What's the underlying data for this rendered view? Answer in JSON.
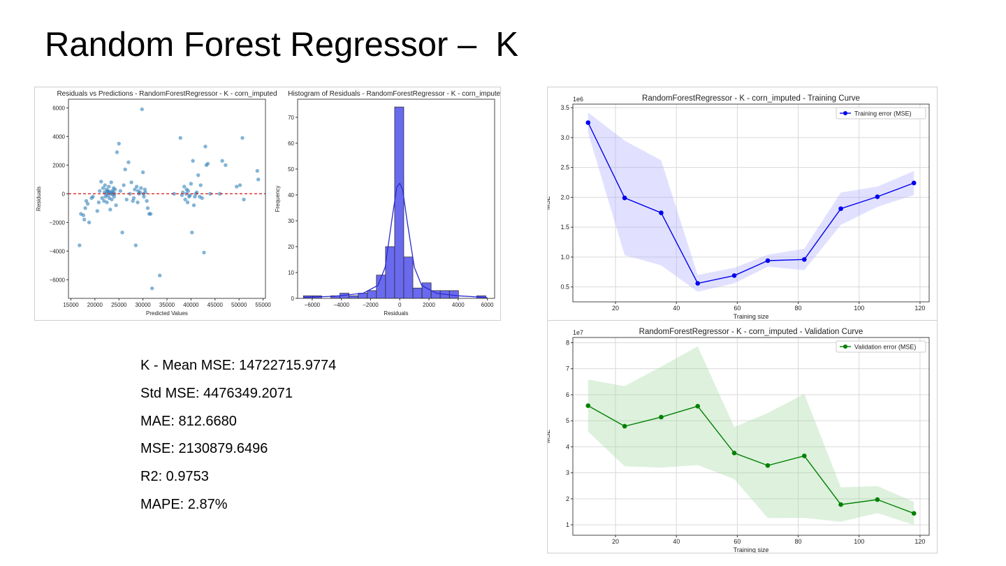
{
  "slide": {
    "title": "Random Forest Regressor –  K"
  },
  "metrics": {
    "mean_mse": "K - Mean MSE: 14722715.9774",
    "std_mse": "Std MSE: 4476349.2071",
    "mae": "MAE: 812.6680",
    "mse": "MSE: 2130879.6496",
    "r2": "R2: 0.9753",
    "mape": "MAPE: 2.87%"
  },
  "chart_data": [
    {
      "id": "scatter",
      "type": "scatter",
      "title": "Residuals vs Predictions - RandomForestRegressor - K - corn_imputed",
      "xlabel": "Predicted Values",
      "ylabel": "Residuals",
      "xlim": [
        14500,
        55500
      ],
      "ylim": [
        -7300,
        6600
      ],
      "xticks": [
        15000,
        20000,
        25000,
        30000,
        35000,
        40000,
        45000,
        50000,
        55000
      ],
      "yticks": [
        -6000,
        -4000,
        -2000,
        0,
        2000,
        4000,
        6000
      ],
      "reference_line": 0,
      "color": "#1f77b4",
      "ref_color": "#d62728",
      "points": [
        [
          16800,
          -3600
        ],
        [
          17100,
          -1400
        ],
        [
          17600,
          -1500
        ],
        [
          17800,
          -1800
        ],
        [
          18000,
          -1000
        ],
        [
          18200,
          -500
        ],
        [
          18500,
          -700
        ],
        [
          18800,
          -2000
        ],
        [
          19300,
          -300
        ],
        [
          19600,
          -200
        ],
        [
          20500,
          -1200
        ],
        [
          20800,
          -600
        ],
        [
          21000,
          200
        ],
        [
          21300,
          850
        ],
        [
          21500,
          -300
        ],
        [
          21700,
          400
        ],
        [
          21900,
          -500
        ],
        [
          22000,
          100
        ],
        [
          22100,
          600
        ],
        [
          22200,
          -200
        ],
        [
          22300,
          0
        ],
        [
          22400,
          300
        ],
        [
          22500,
          -600
        ],
        [
          22600,
          150
        ],
        [
          22700,
          -100
        ],
        [
          22800,
          200
        ],
        [
          22900,
          500
        ],
        [
          23000,
          -300
        ],
        [
          23100,
          100
        ],
        [
          23200,
          -1100
        ],
        [
          23300,
          0
        ],
        [
          23400,
          800
        ],
        [
          23500,
          -400
        ],
        [
          23600,
          200
        ],
        [
          23700,
          -50
        ],
        [
          23800,
          100
        ],
        [
          23900,
          400
        ],
        [
          24000,
          -200
        ],
        [
          24100,
          0
        ],
        [
          24200,
          300
        ],
        [
          24400,
          -800
        ],
        [
          24600,
          2900
        ],
        [
          25000,
          3500
        ],
        [
          25300,
          200
        ],
        [
          25700,
          -2700
        ],
        [
          26000,
          600
        ],
        [
          26300,
          1700
        ],
        [
          26600,
          -400
        ],
        [
          27000,
          2200
        ],
        [
          27300,
          0
        ],
        [
          27600,
          800
        ],
        [
          27900,
          -500
        ],
        [
          28100,
          -300
        ],
        [
          28300,
          300
        ],
        [
          28500,
          -3600
        ],
        [
          28700,
          500
        ],
        [
          28900,
          -600
        ],
        [
          29000,
          200
        ],
        [
          29200,
          0
        ],
        [
          29400,
          100
        ],
        [
          29600,
          400
        ],
        [
          29800,
          5900
        ],
        [
          30000,
          1500
        ],
        [
          30100,
          0
        ],
        [
          30200,
          -200
        ],
        [
          30400,
          300
        ],
        [
          30500,
          100
        ],
        [
          30800,
          -500
        ],
        [
          31000,
          -1000
        ],
        [
          31300,
          -1400
        ],
        [
          31600,
          -1400
        ],
        [
          31900,
          -6600
        ],
        [
          33500,
          -5700
        ],
        [
          37800,
          3900
        ],
        [
          38100,
          -100
        ],
        [
          38300,
          100
        ],
        [
          38600,
          500
        ],
        [
          38800,
          -400
        ],
        [
          39000,
          0
        ],
        [
          39100,
          300
        ],
        [
          39300,
          -600
        ],
        [
          39400,
          200
        ],
        [
          39600,
          -200
        ],
        [
          39800,
          -100
        ],
        [
          40000,
          700
        ],
        [
          40200,
          -2700
        ],
        [
          40400,
          2300
        ],
        [
          40600,
          -800
        ],
        [
          40800,
          -200
        ],
        [
          41000,
          0
        ],
        [
          41200,
          100
        ],
        [
          41500,
          1300
        ],
        [
          41800,
          -200
        ],
        [
          42000,
          600
        ],
        [
          42300,
          -300
        ],
        [
          42700,
          -4100
        ],
        [
          43000,
          3300
        ],
        [
          43200,
          2000
        ],
        [
          43500,
          2100
        ],
        [
          46500,
          2300
        ],
        [
          47200,
          2000
        ],
        [
          49500,
          500
        ],
        [
          50200,
          600
        ],
        [
          50700,
          3900
        ],
        [
          51000,
          -400
        ],
        [
          53800,
          1600
        ],
        [
          54000,
          1000
        ],
        [
          46000,
          0
        ],
        [
          44000,
          0
        ],
        [
          36500,
          0
        ]
      ]
    },
    {
      "id": "histogram",
      "type": "bar",
      "title": "Histogram of Residuals - RandomForestRegressor - K - corn_imputed",
      "xlabel": "Residuals",
      "ylabel": "Frequency",
      "xlim": [
        -7000,
        6500
      ],
      "ylim": [
        0,
        77
      ],
      "xticks": [
        -6000,
        -4000,
        -2000,
        0,
        2000,
        4000,
        6000
      ],
      "yticks": [
        0,
        10,
        20,
        30,
        40,
        50,
        60,
        70
      ],
      "bin_edges": [
        -6600,
        -5975,
        -5350,
        -4725,
        -4100,
        -3475,
        -2850,
        -2225,
        -1600,
        -975,
        -350,
        275,
        900,
        1525,
        2150,
        2775,
        3400,
        4025,
        4650,
        5275,
        5900
      ],
      "values": [
        1,
        1,
        0,
        1,
        2,
        1,
        2,
        3,
        9,
        20,
        74,
        16,
        4,
        6,
        3,
        3,
        3,
        0,
        0,
        1
      ],
      "kde": [
        [
          -6600,
          0.4
        ],
        [
          -4500,
          0.8
        ],
        [
          -2500,
          2
        ],
        [
          -1500,
          5
        ],
        [
          -1000,
          12
        ],
        [
          -500,
          32
        ],
        [
          -200,
          43
        ],
        [
          0,
          44.5
        ],
        [
          200,
          42
        ],
        [
          500,
          30
        ],
        [
          1000,
          12
        ],
        [
          1500,
          5
        ],
        [
          2500,
          2
        ],
        [
          4000,
          1
        ],
        [
          6000,
          0.3
        ]
      ],
      "color": "#6a6aee",
      "kde_color": "#2b2bd6"
    },
    {
      "id": "training",
      "type": "line",
      "title": "RandomForestRegressor - K - corn_imputed - Training Curve",
      "xlabel": "Training size",
      "ylabel": "MSE",
      "scale_label": "1e6",
      "legend": "Training error (MSE)",
      "legend_position": "top-right",
      "xlim": [
        6,
        123
      ],
      "ylim": [
        0.25,
        3.56
      ],
      "xticks": [
        20,
        40,
        60,
        80,
        100,
        120
      ],
      "yticks": [
        0.5,
        1.0,
        1.5,
        2.0,
        2.5,
        3.0,
        3.5
      ],
      "x": [
        11,
        23,
        35,
        47,
        59,
        70,
        82,
        94,
        106,
        118
      ],
      "y": [
        3.25,
        1.99,
        1.74,
        0.56,
        0.69,
        0.94,
        0.96,
        1.81,
        2.01,
        2.24
      ],
      "upper": [
        3.42,
        2.95,
        2.62,
        0.7,
        0.82,
        1.04,
        1.14,
        2.08,
        2.18,
        2.44
      ],
      "lower": [
        3.08,
        1.03,
        0.86,
        0.42,
        0.56,
        0.84,
        0.78,
        1.54,
        1.84,
        2.04
      ],
      "color": "#0000ee",
      "band_color": "#aaaaff"
    },
    {
      "id": "validation",
      "type": "line",
      "title": "RandomForestRegressor - K - corn_imputed - Validation Curve",
      "xlabel": "Training size",
      "ylabel": "MSE",
      "scale_label": "1e7",
      "legend": "Validation error (MSE)",
      "legend_position": "top-right",
      "xlim": [
        6,
        123
      ],
      "ylim": [
        0.6,
        8.2
      ],
      "xticks": [
        20,
        40,
        60,
        80,
        100,
        120
      ],
      "yticks": [
        1,
        2,
        3,
        4,
        5,
        6,
        7,
        8
      ],
      "x": [
        11,
        23,
        35,
        47,
        59,
        70,
        82,
        94,
        106,
        118
      ],
      "y": [
        5.58,
        4.79,
        5.14,
        5.56,
        3.76,
        3.28,
        3.65,
        1.78,
        1.97,
        1.44
      ],
      "upper": [
        6.58,
        6.33,
        7.08,
        7.86,
        4.76,
        5.3,
        6.03,
        2.44,
        2.49,
        1.88
      ],
      "lower": [
        4.58,
        3.25,
        3.2,
        3.3,
        2.76,
        1.26,
        1.27,
        1.12,
        1.45,
        1.0
      ],
      "color": "#008000",
      "band_color": "#9fd89f"
    }
  ]
}
